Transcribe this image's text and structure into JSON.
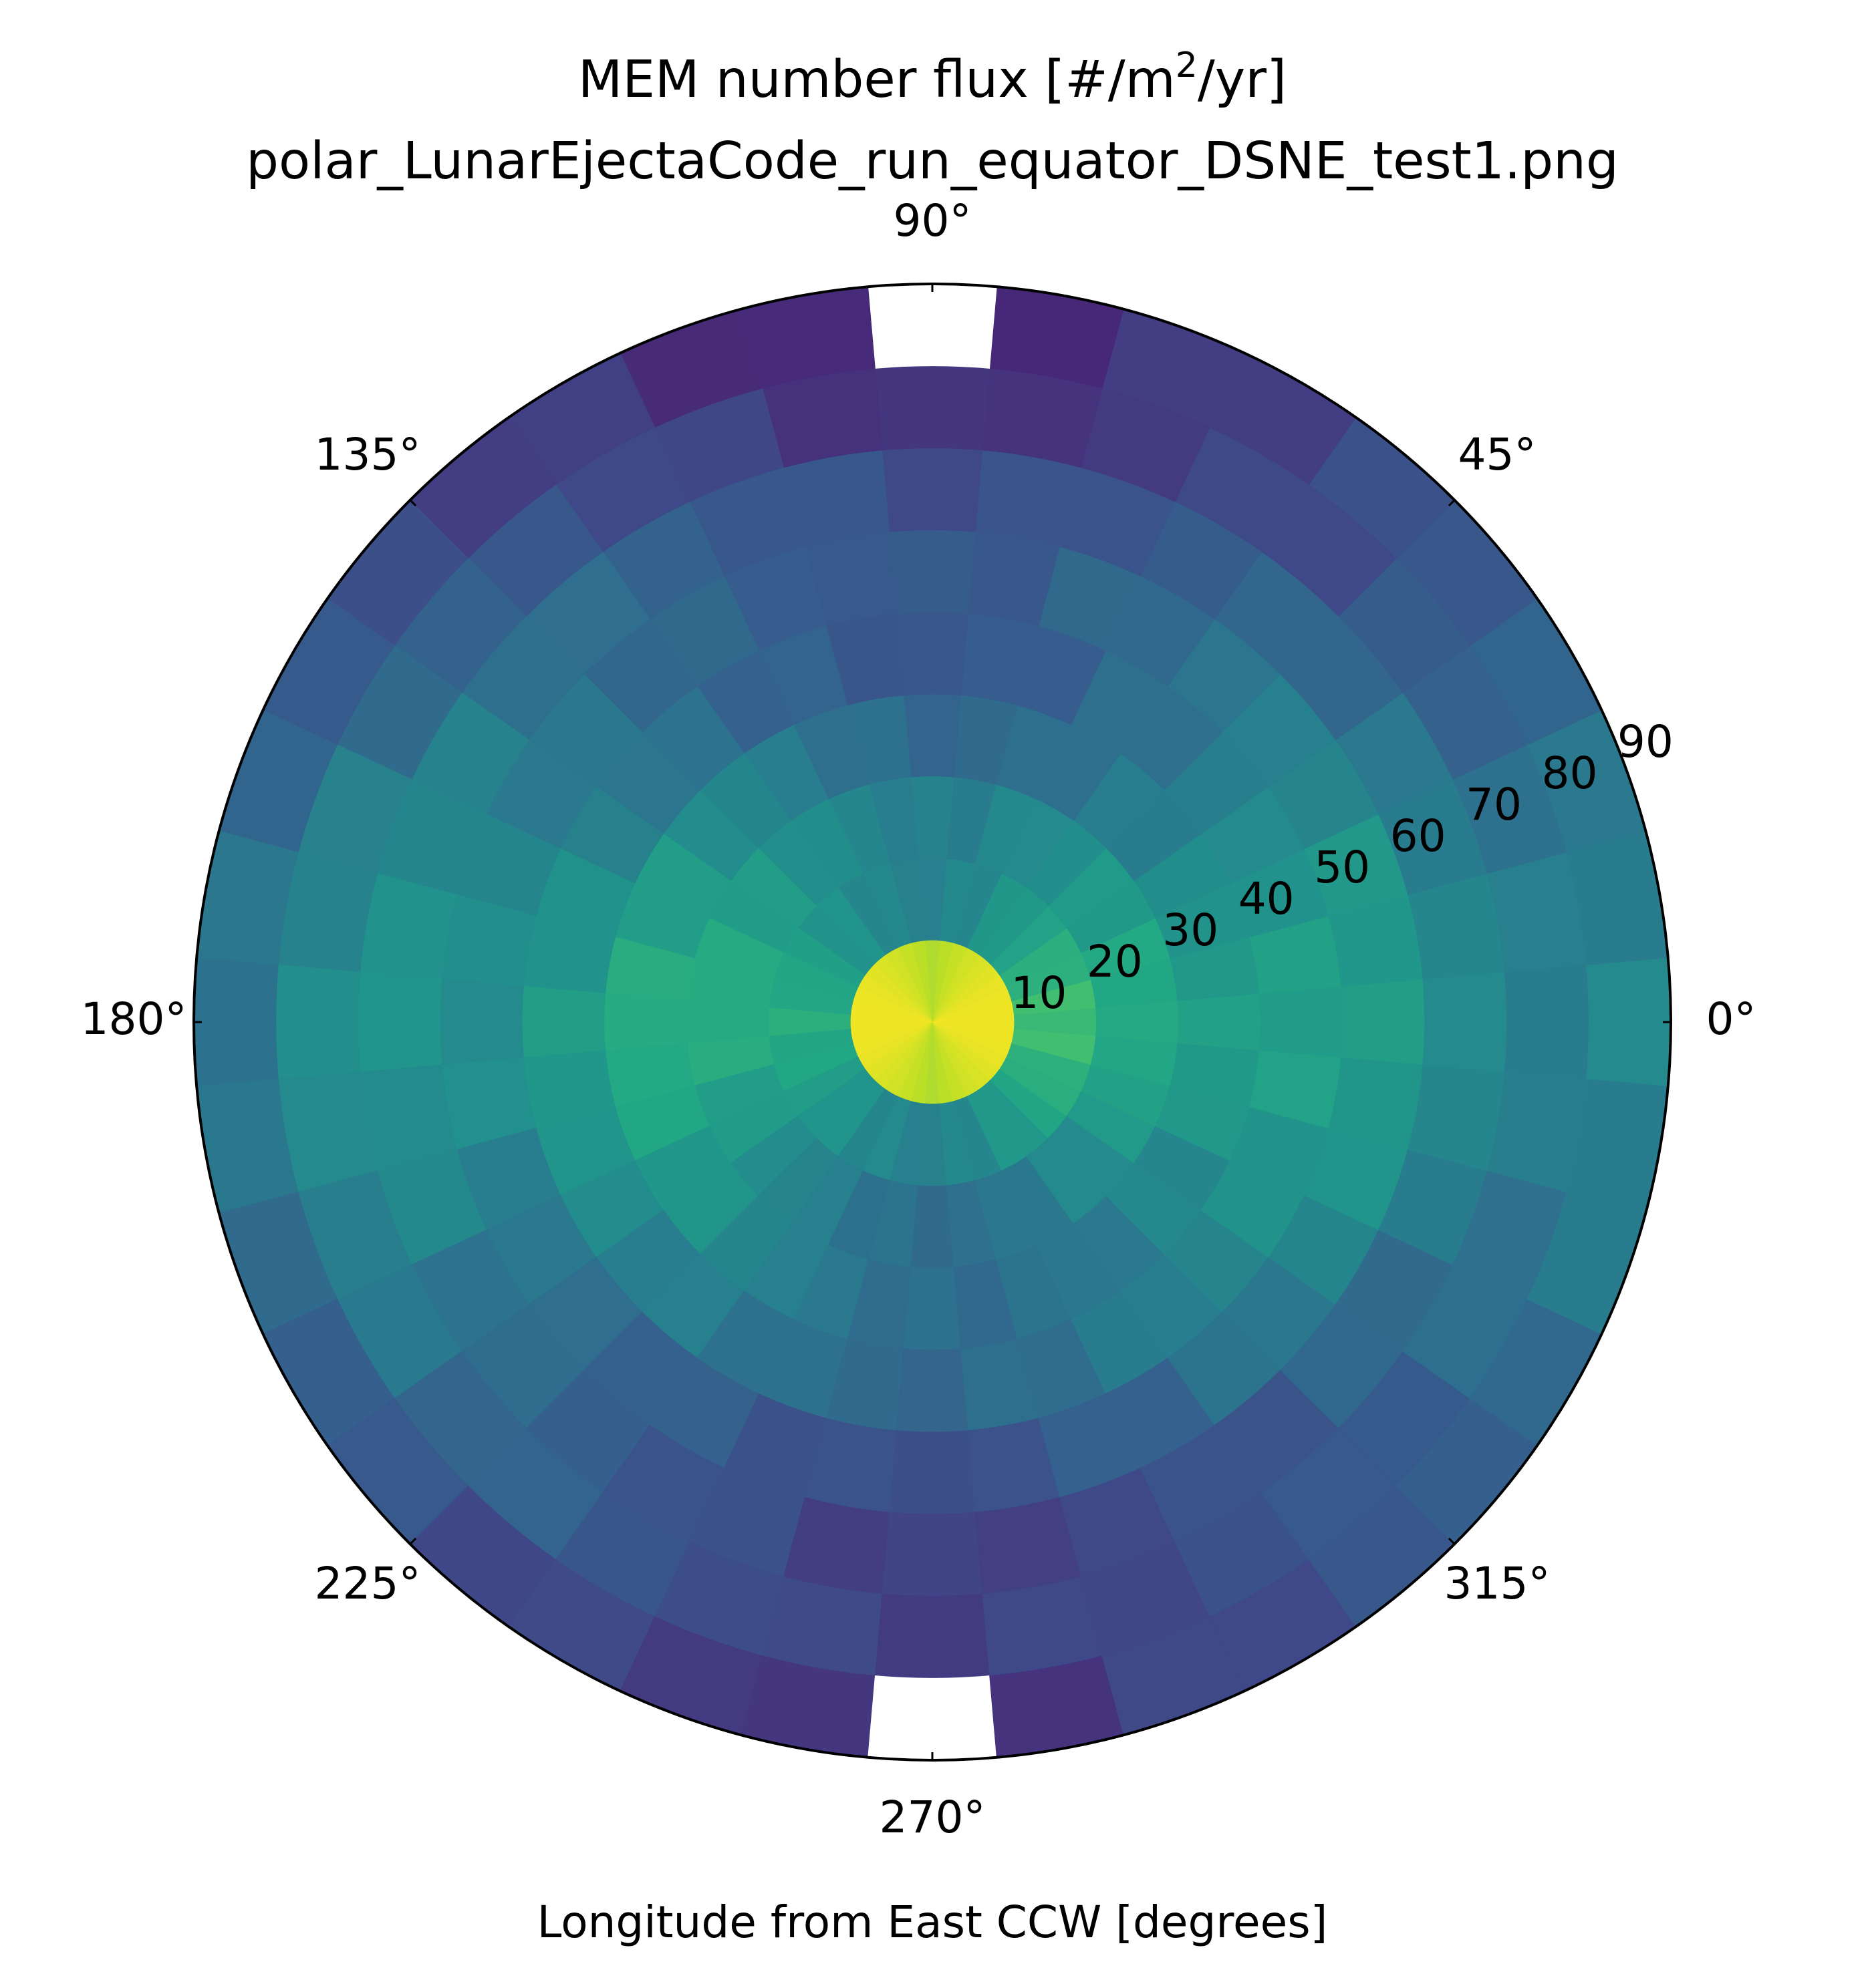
{
  "chart_data": {
    "type": "heatmap",
    "projection": "polar",
    "title_line1_prefix": "MEM number flux [#/m",
    "title_line1_sup": "2",
    "title_line1_suffix": "/yr]",
    "title_line2": "polar_LunarEjectaCode_run_equator_DSNE_test1.png",
    "xlabel": "Longitude from East CCW [degrees]",
    "theta_tick_labels": [
      "0°",
      "45°",
      "90°",
      "135°",
      "180°",
      "225°",
      "270°",
      "315°"
    ],
    "theta_tick_values": [
      0,
      45,
      90,
      135,
      180,
      225,
      270,
      315
    ],
    "r_tick_labels": [
      "10",
      "20",
      "30",
      "40",
      "50",
      "60",
      "70",
      "80",
      "90"
    ],
    "r_tick_values": [
      10,
      20,
      30,
      40,
      50,
      60,
      70,
      80,
      90
    ],
    "r_label_angle_deg": 22.5,
    "rlim": [
      0,
      90
    ],
    "theta_bin_width_deg": 10,
    "r_bin_edges": [
      0,
      10,
      20,
      30,
      40,
      50,
      60,
      70,
      80,
      90
    ],
    "colormap": "viridis",
    "grid": false,
    "masked_cells": [
      {
        "theta": [
          85,
          95
        ],
        "r": [
          80,
          90
        ]
      },
      {
        "theta": [
          265,
          275
        ],
        "r": [
          80,
          90
        ]
      }
    ]
  }
}
